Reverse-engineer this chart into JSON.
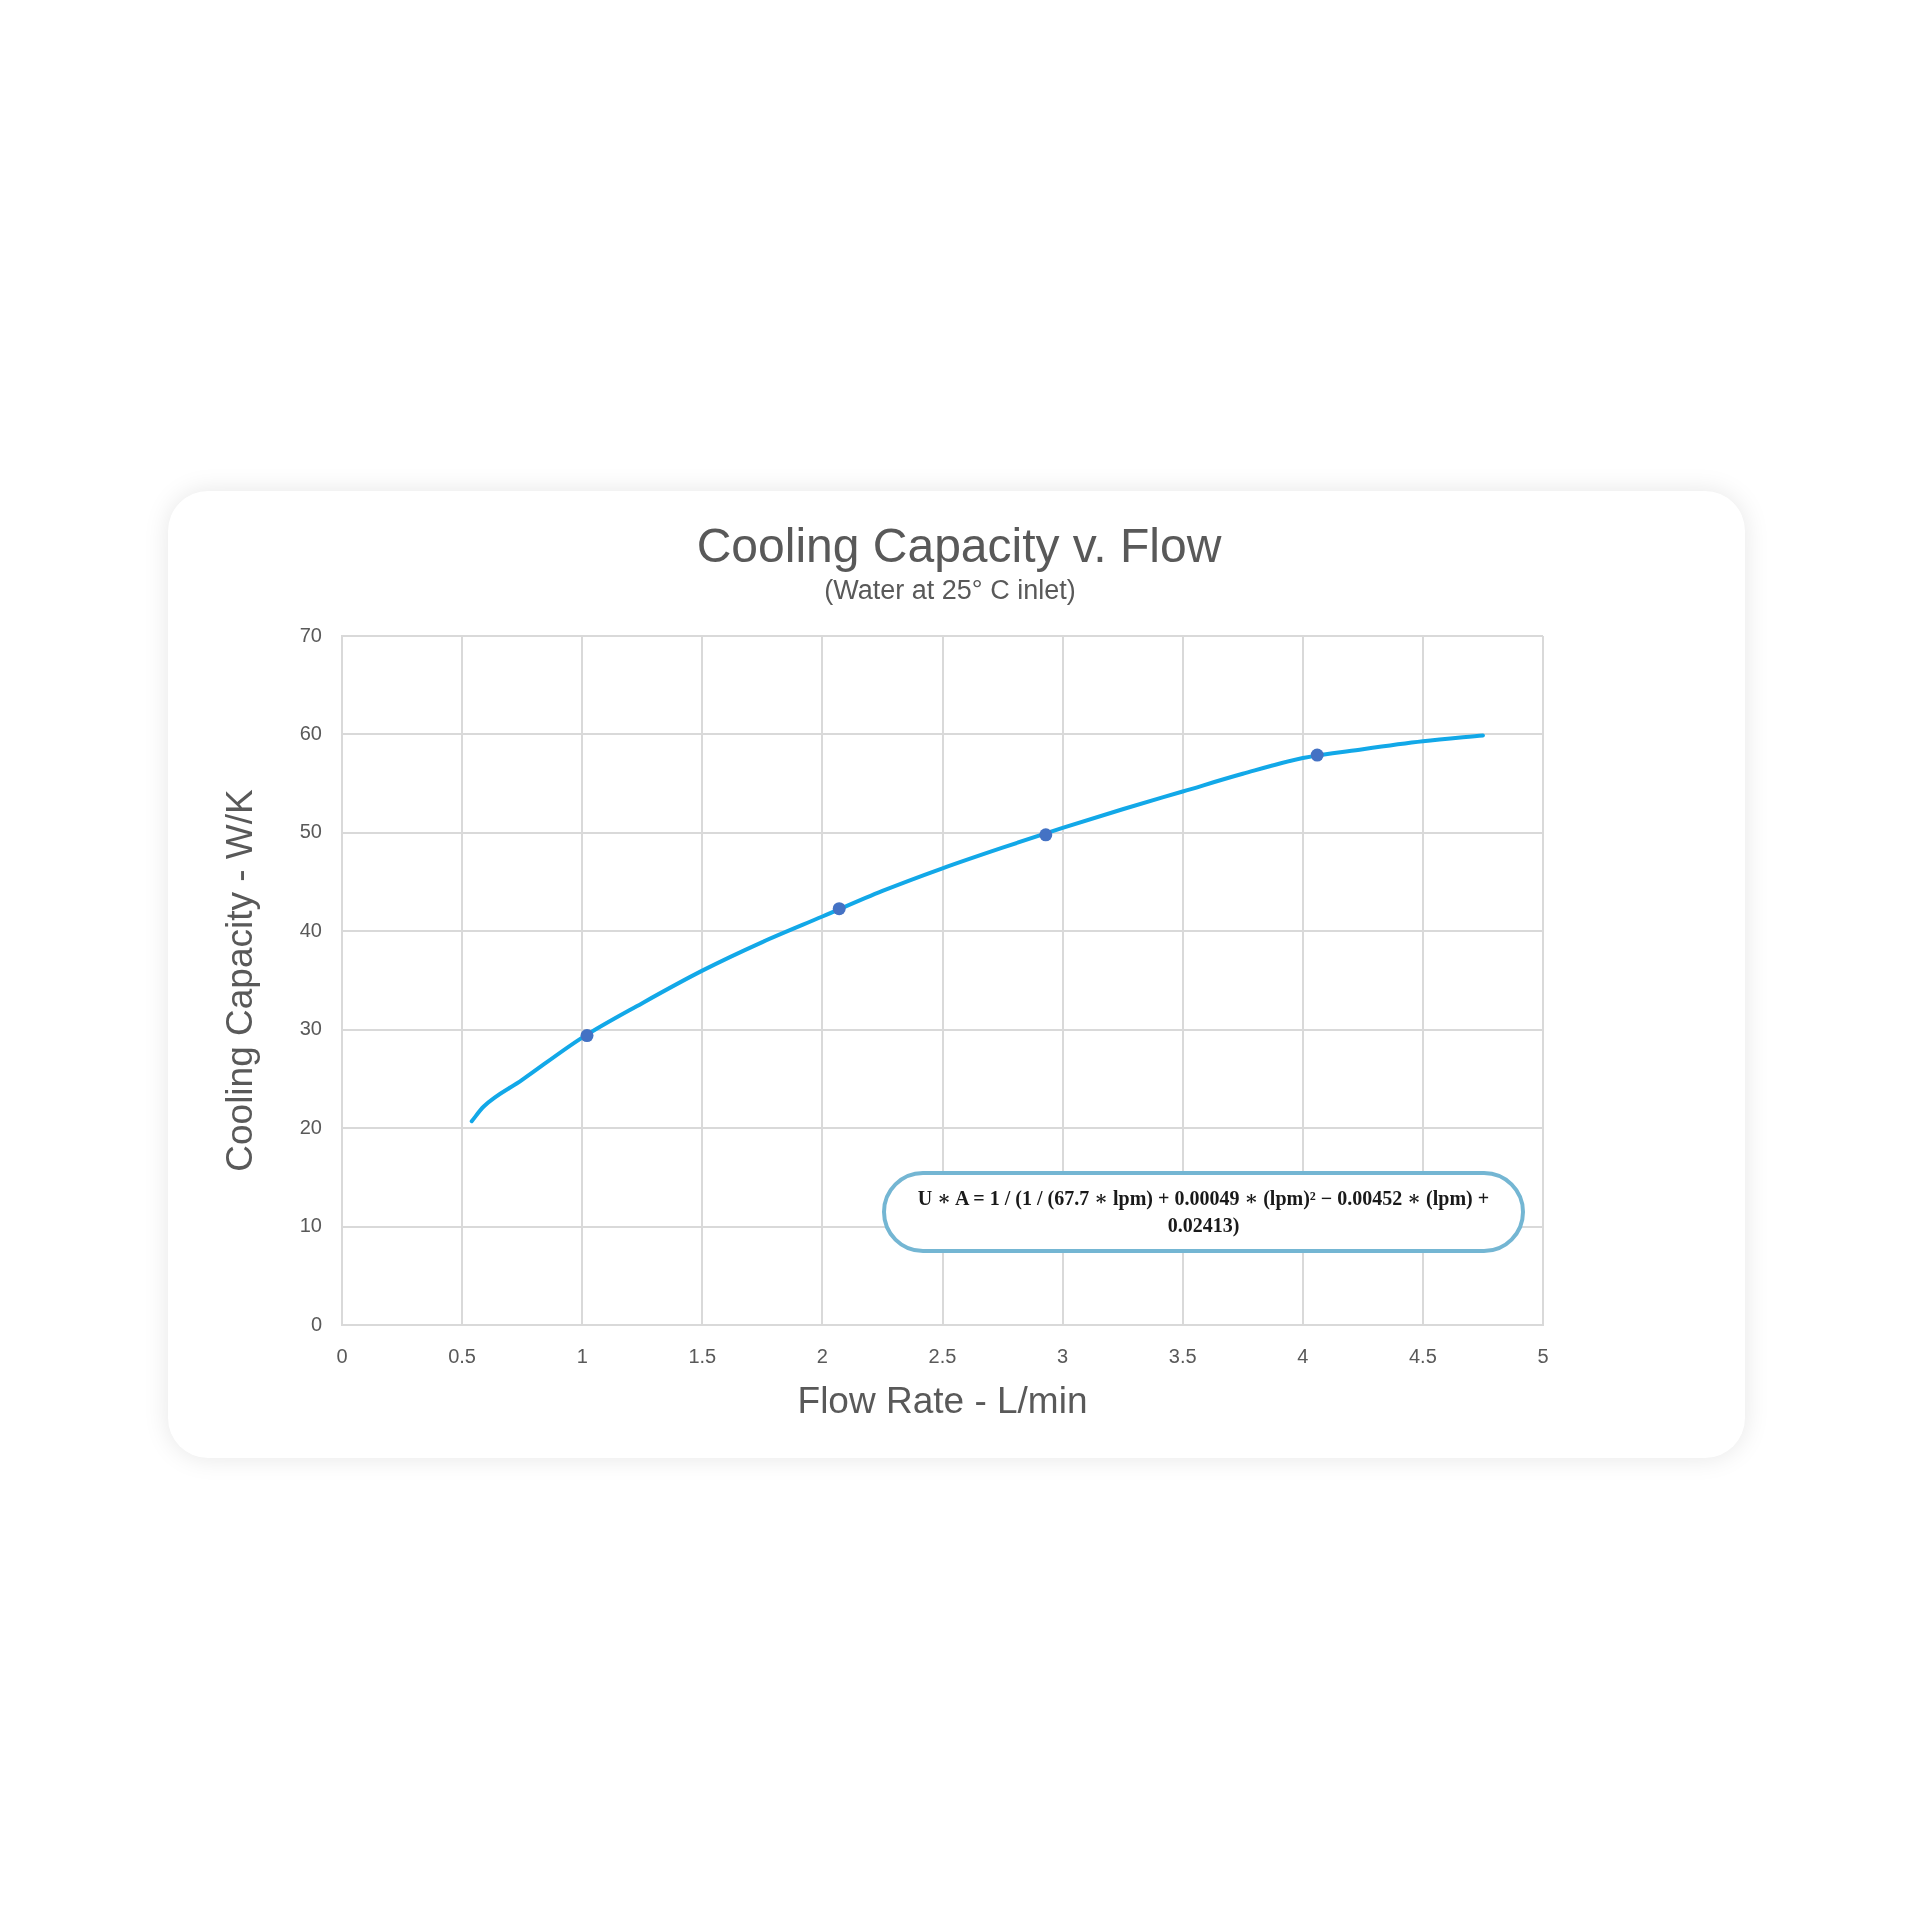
{
  "chart_data": {
    "type": "scatter",
    "title": "Cooling Capacity v. Flow",
    "subtitle": "(Water at 25° C inlet)",
    "xlabel": "Flow Rate - L/min",
    "ylabel": "Cooling Capacity - W/K",
    "series": [
      {
        "type": "line",
        "marker": "none",
        "color": "#12a8e8",
        "x": [
          0.54,
          0.59,
          0.75,
          1,
          1.25,
          1.5,
          1.75,
          2,
          2.25,
          2.5,
          2.75,
          3,
          3.25,
          3.5,
          3.75,
          4,
          4.25,
          4.5,
          4.75
        ],
        "values": [
          20.7,
          22.2,
          24.9,
          29.2,
          32.7,
          36.0,
          38.9,
          41.5,
          44.1,
          46.4,
          48.5,
          50.5,
          52.4,
          54.2,
          56.0,
          57.6,
          58.5,
          59.3,
          59.9
        ]
      },
      {
        "color": "#4472c4",
        "x": [
          1.02,
          2.07,
          2.93,
          4.06
        ],
        "values": [
          29.4,
          42.3,
          49.8,
          57.9
        ]
      }
    ],
    "xlim": [
      0,
      5
    ],
    "xticks": [
      0,
      0.5,
      1,
      1.5,
      2,
      2.5,
      3,
      3.5,
      4,
      4.5,
      5
    ],
    "ylim": [
      0,
      70
    ],
    "yticks": [
      0,
      10,
      20,
      30,
      40,
      50,
      60,
      70
    ],
    "grid": true,
    "marker": "circle",
    "line_style": "solid",
    "annotations": [
      "U ∗ A = 1 / (1 / (67.7 ∗ lpm) + 0.00049 ∗ (lpm)² − 0.00452 ∗ (lpm) + 0.02413)"
    ]
  }
}
